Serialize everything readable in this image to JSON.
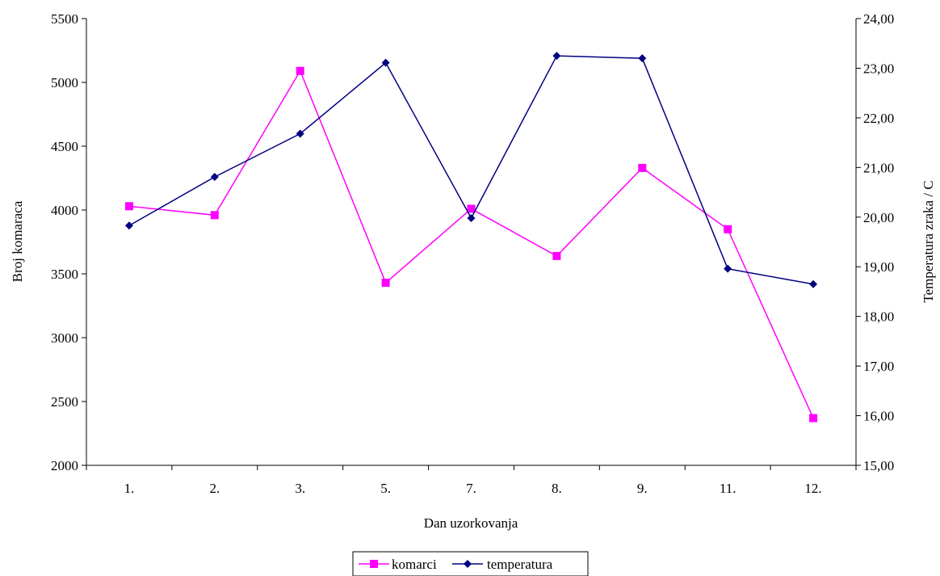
{
  "chart_data": {
    "type": "line",
    "title": "",
    "xlabel": "Dan uzorkovanja",
    "ylabel_left": "Broj komaraca",
    "ylabel_right": "Temperatura zraka / C",
    "categories": [
      "1.",
      "2.",
      "3.",
      "5.",
      "7.",
      "8.",
      "9.",
      "11.",
      "12."
    ],
    "y_left_range": [
      2000,
      5500
    ],
    "y_left_ticks": [
      "2000",
      "2500",
      "3000",
      "3500",
      "4000",
      "4500",
      "5000",
      "5500"
    ],
    "y_right_range": [
      15,
      24
    ],
    "y_right_ticks": [
      "15,00",
      "16,00",
      "17,00",
      "18,00",
      "19,00",
      "20,00",
      "21,00",
      "22,00",
      "23,00",
      "24,00"
    ],
    "grid": false,
    "legend_position": "bottom",
    "series": [
      {
        "name": "komarci",
        "axis": "left",
        "color": "#ff00ff",
        "marker": "square",
        "values": [
          4030,
          3960,
          5090,
          3430,
          4010,
          3640,
          4330,
          3850,
          2370
        ]
      },
      {
        "name": "temperatura",
        "axis": "right",
        "color": "#000080",
        "marker": "diamond",
        "values": [
          19.83,
          20.81,
          21.68,
          23.11,
          19.98,
          23.25,
          23.2,
          18.96,
          18.65
        ]
      }
    ]
  }
}
